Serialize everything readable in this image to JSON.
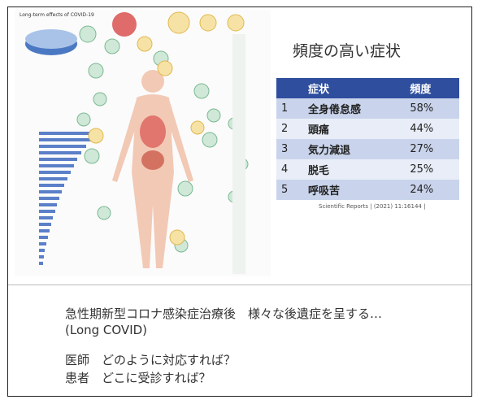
{
  "figure": {
    "title": "Long-term effects of COVID-19"
  },
  "slide": {
    "heading": "頻度の高い症状",
    "table": {
      "header": [
        "",
        "症状",
        "頻度"
      ],
      "rows": [
        [
          "1",
          "全身倦怠感",
          "58%"
        ],
        [
          "2",
          "頭痛",
          "44%"
        ],
        [
          "3",
          "気力減退",
          "27%"
        ],
        [
          "4",
          "脱毛",
          "25%"
        ],
        [
          "5",
          "呼吸苦",
          "24%"
        ]
      ]
    },
    "citation": "Scientific Reports | (2021) 11:16144 |"
  },
  "notes": {
    "lines": [
      "急性期新型コロナ感染症治療後　様々な後遺症を呈する…",
      "(Long COVID)",
      "医師　どのように対応すれば？",
      "患者　どこに受診すれば？"
    ]
  }
}
